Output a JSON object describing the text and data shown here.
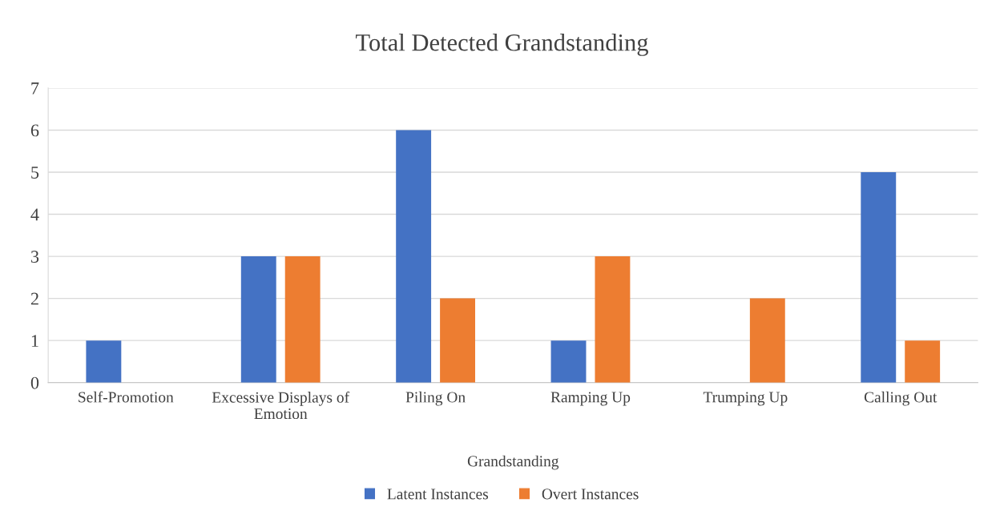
{
  "chart_data": {
    "type": "bar",
    "title": "Total Detected Grandstanding",
    "xlabel": "Grandstanding",
    "categories": [
      "Self-Promotion",
      "Excessive Displays of\nEmotion",
      "Piling On",
      "Ramping Up",
      "Trumping Up",
      "Calling Out"
    ],
    "series": [
      {
        "name": "Latent Instances",
        "color": "#4472c4",
        "values": [
          1,
          3,
          6,
          1,
          0,
          5
        ]
      },
      {
        "name": "Overt Instances",
        "color": "#ed7d31",
        "values": [
          0,
          3,
          2,
          3,
          2,
          1
        ]
      }
    ],
    "ylim": [
      0,
      7
    ],
    "yticks": [
      0,
      1,
      2,
      3,
      4,
      5,
      6,
      7
    ],
    "grid": "y",
    "legend": "bottom"
  }
}
